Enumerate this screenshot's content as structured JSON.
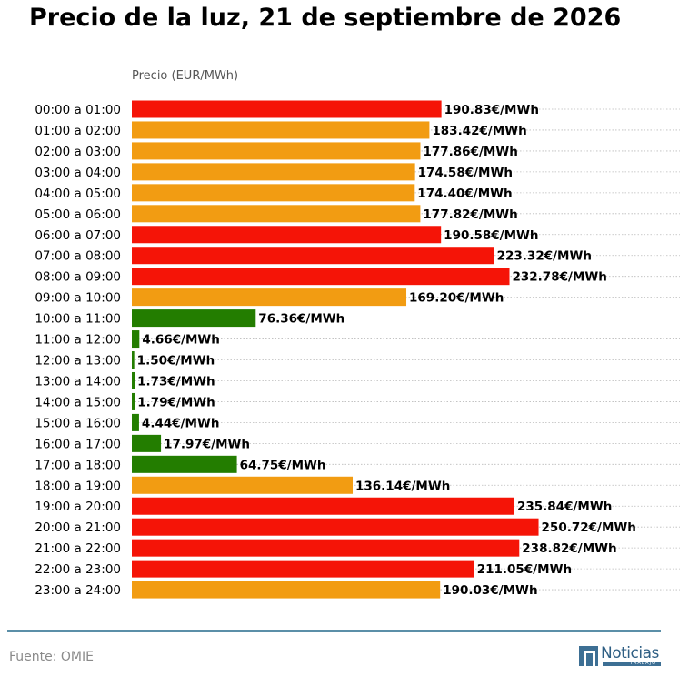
{
  "title": "Precio de la luz, 21 de septiembre de 2026",
  "source": "Fuente: OMIE",
  "logo": {
    "name": "Noticias",
    "sub": "TRABAJO"
  },
  "colors": {
    "high": "#f51407",
    "mid": "#f29c12",
    "low": "#237d00",
    "grid": "#bbbbbb",
    "footer_line": "#5b8fa8"
  },
  "chart_data": {
    "type": "bar",
    "orientation": "horizontal",
    "xlabel": "Precio (EUR/MWh)",
    "value_suffix": "€/MWh",
    "grid": true,
    "categories": [
      "00:00 a 01:00",
      "01:00 a 02:00",
      "02:00 a 03:00",
      "03:00 a 04:00",
      "04:00 a 05:00",
      "05:00 a 06:00",
      "06:00 a 07:00",
      "07:00 a 08:00",
      "08:00 a 09:00",
      "09:00 a 10:00",
      "10:00 a 11:00",
      "11:00 a 12:00",
      "12:00 a 13:00",
      "13:00 a 14:00",
      "14:00 a 15:00",
      "15:00 a 16:00",
      "16:00 a 17:00",
      "17:00 a 18:00",
      "18:00 a 19:00",
      "19:00 a 20:00",
      "20:00 a 21:00",
      "21:00 a 22:00",
      "22:00 a 23:00",
      "23:00 a 24:00"
    ],
    "values": [
      190.83,
      183.42,
      177.86,
      174.58,
      174.4,
      177.82,
      190.58,
      223.32,
      232.78,
      169.2,
      76.36,
      4.66,
      1.5,
      1.73,
      1.79,
      4.44,
      17.97,
      64.75,
      136.14,
      235.84,
      250.72,
      238.82,
      211.05,
      190.03
    ],
    "levels": [
      "high",
      "mid",
      "mid",
      "mid",
      "mid",
      "mid",
      "high",
      "high",
      "high",
      "mid",
      "low",
      "low",
      "low",
      "low",
      "low",
      "low",
      "low",
      "low",
      "mid",
      "high",
      "high",
      "high",
      "high",
      "mid"
    ]
  }
}
